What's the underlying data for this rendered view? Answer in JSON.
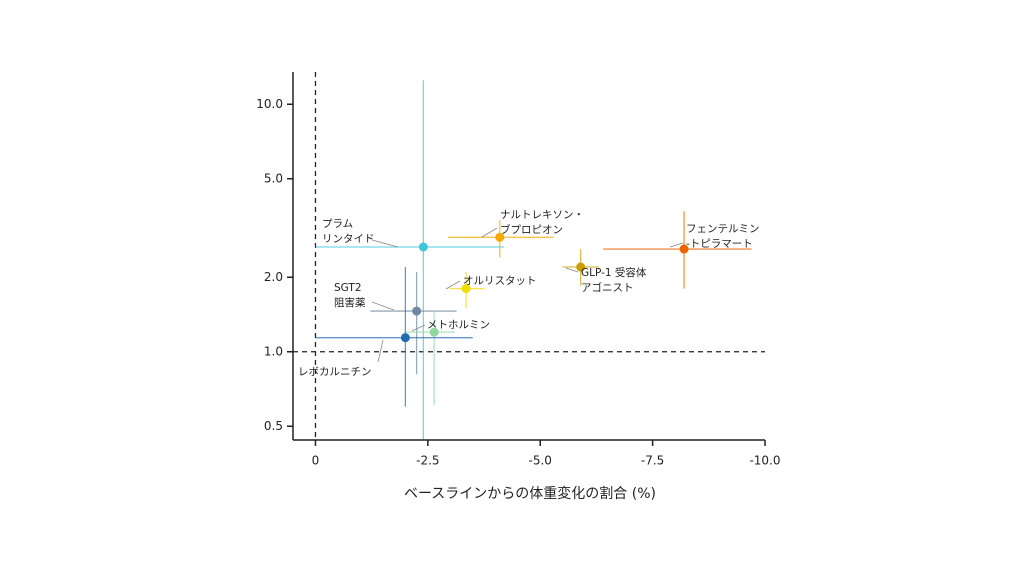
{
  "chart_data": {
    "type": "scatter",
    "x_label": "ベースラインからの体重変化の割合 (%)",
    "xlim": [
      0.5,
      -10
    ],
    "xticks": [
      0,
      -2.5,
      {
        "value": -5,
        "label": "-5.0"
      },
      -7.5,
      {
        "value": -10,
        "label": "-10.0"
      }
    ],
    "ylim": [
      0.44,
      13.5
    ],
    "yticks": [
      {
        "value": 10,
        "label": "10.0"
      },
      {
        "value": 5,
        "label": "5.0"
      },
      {
        "value": 2,
        "label": "2.0"
      },
      {
        "value": 1,
        "label": "1.0"
      },
      0.5
    ],
    "y_scale": "log",
    "reference_lines": {
      "x": 0,
      "y": 1
    },
    "points": [
      {
        "label": [
          "プラム",
          "リンタイド"
        ],
        "color": "#3ec6dc",
        "x": -2.4,
        "y": 2.65,
        "x_low": 0,
        "x_high": -4.2,
        "y_low": 0.4,
        "y_high": 12.5
      },
      {
        "label": [
          "ナルトレキソン・",
          "ブプロピオン"
        ],
        "color": "#f5a800",
        "x": -4.1,
        "y": 2.9,
        "x_low": -2.95,
        "x_high": -5.3,
        "y_low": 2.4,
        "y_high": 3.4
      },
      {
        "label": [
          "フェンテルミン",
          "-トピラマート"
        ],
        "color": "#f06400",
        "x": -8.2,
        "y": 2.6,
        "x_low": -6.4,
        "x_high": -9.7,
        "y_low": 1.8,
        "y_high": 3.7
      },
      {
        "label": [
          "GLP-1 受容体",
          "アゴニスト"
        ],
        "color": "#c9a000",
        "x": -5.9,
        "y": 2.2,
        "x_low": -5.5,
        "x_high": -6.3,
        "y_low": 1.85,
        "y_high": 2.6
      },
      {
        "label": [
          "オルリスタット"
        ],
        "color": "#f2dc00",
        "x": -3.35,
        "y": 1.8,
        "x_low": -2.98,
        "x_high": -3.76,
        "y_low": 1.5,
        "y_high": 2.1
      },
      {
        "label": [
          "SGT2",
          "阻害薬"
        ],
        "color": "#6f87a0",
        "x": -2.25,
        "y": 1.46,
        "x_low": -1.22,
        "x_high": -3.14,
        "y_low": 0.81,
        "y_high": 2.1
      },
      {
        "label": [
          "メトホルミン"
        ],
        "color": "#90d8a0",
        "x": -2.64,
        "y": 1.2,
        "x_low": -2.0,
        "x_high": -3.1,
        "y_low": 0.61,
        "y_high": 1.44
      },
      {
        "label": [
          "レボカルニチン"
        ],
        "color": "#1f6db0",
        "x": -2.0,
        "y": 1.14,
        "x_low": 0,
        "x_high": -3.5,
        "y_low": 0.6,
        "y_high": 2.2
      }
    ]
  }
}
